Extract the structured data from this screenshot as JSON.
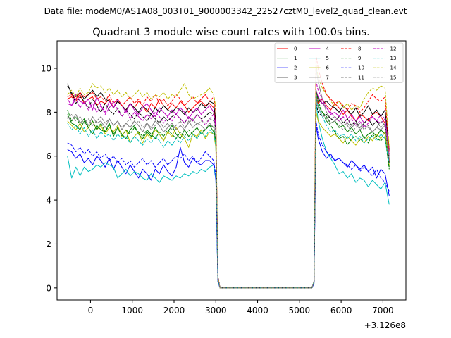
{
  "suptitle": "Data file: modeM0/AS1A08_003T01_9000003342_22527cztM0_level2_quad_clean.evt",
  "chart_data": {
    "type": "line",
    "title": "Quadrant 3 module wise count rates with 100.0s bins.",
    "xlabel": "",
    "ylabel": "",
    "x_offset_label": "+3.126e8",
    "xlim": [
      -800,
      7550
    ],
    "ylim": [
      -0.55,
      11.25
    ],
    "xticks": [
      0,
      1000,
      2000,
      3000,
      4000,
      5000,
      6000,
      7000
    ],
    "yticks": [
      0,
      2,
      4,
      6,
      8,
      10
    ],
    "x": [
      -550,
      -450,
      -350,
      -250,
      -150,
      -50,
      50,
      150,
      250,
      350,
      450,
      550,
      650,
      750,
      850,
      950,
      1050,
      1150,
      1250,
      1350,
      1450,
      1550,
      1650,
      1750,
      1850,
      1950,
      2050,
      2150,
      2250,
      2350,
      2450,
      2550,
      2650,
      2750,
      2850,
      2950,
      3000,
      3050,
      3100,
      5300,
      5350,
      5400,
      5450,
      5550,
      5650,
      5750,
      5850,
      5950,
      6050,
      6150,
      6250,
      6350,
      6450,
      6550,
      6650,
      6750,
      6850,
      6950,
      7050,
      7150
    ],
    "legend": {
      "location": "top-right",
      "columns": 4
    },
    "series": [
      {
        "name": "0",
        "color": "#ff0000",
        "dash": false,
        "values": [
          8.6,
          8.7,
          8.5,
          8.8,
          8.4,
          8.6,
          8.7,
          8.3,
          8.5,
          8.4,
          8.6,
          8.2,
          8.5,
          8.3,
          8.1,
          8.4,
          8.2,
          8.5,
          8.3,
          8.0,
          8.4,
          8.2,
          8.6,
          8.3,
          8.1,
          8.4,
          8.2,
          8.5,
          8.3,
          8.0,
          8.2,
          8.4,
          8.5,
          8.3,
          8.4,
          8.2,
          7.5,
          0.5,
          0.0,
          0.0,
          0.3,
          8.8,
          8.4,
          8.6,
          8.3,
          8.1,
          8.4,
          8.2,
          7.9,
          8.1,
          7.8,
          7.6,
          7.9,
          7.8,
          7.6,
          7.9,
          8.0,
          7.8,
          7.5,
          5.8
        ]
      },
      {
        "name": "1",
        "color": "#008000",
        "dash": false,
        "values": [
          7.9,
          7.5,
          7.4,
          7.2,
          7.6,
          7.3,
          7.0,
          7.4,
          7.2,
          7.1,
          7.5,
          6.9,
          7.3,
          7.0,
          6.8,
          7.2,
          7.4,
          7.0,
          6.8,
          7.1,
          6.9,
          7.3,
          7.0,
          6.7,
          7.1,
          7.4,
          7.0,
          6.8,
          7.2,
          6.9,
          7.1,
          7.3,
          7.0,
          7.2,
          7.4,
          7.1,
          6.6,
          0.4,
          0.0,
          0.0,
          0.3,
          8.6,
          8.3,
          8.0,
          7.8,
          7.5,
          7.6,
          7.3,
          7.4,
          7.1,
          7.3,
          7.0,
          7.2,
          6.8,
          7.0,
          7.1,
          6.9,
          7.2,
          7.0,
          5.5
        ]
      },
      {
        "name": "2",
        "color": "#0000ff",
        "dash": false,
        "values": [
          6.3,
          6.2,
          5.9,
          6.1,
          5.7,
          5.9,
          5.6,
          6.0,
          5.8,
          5.5,
          5.9,
          5.4,
          5.8,
          5.5,
          5.2,
          5.6,
          5.3,
          5.0,
          5.4,
          5.2,
          4.9,
          5.4,
          5.2,
          5.6,
          5.3,
          5.1,
          5.5,
          6.4,
          5.7,
          5.5,
          5.9,
          5.7,
          5.6,
          5.8,
          5.8,
          5.6,
          4.9,
          0.3,
          0.0,
          0.0,
          0.2,
          7.4,
          6.8,
          6.2,
          5.9,
          6.1,
          5.8,
          5.9,
          5.7,
          5.5,
          5.8,
          5.6,
          5.4,
          5.6,
          5.3,
          5.5,
          5.0,
          5.4,
          5.2,
          4.2
        ]
      },
      {
        "name": "3",
        "color": "#000000",
        "dash": false,
        "values": [
          9.3,
          8.8,
          8.7,
          8.9,
          8.6,
          8.8,
          9.0,
          8.7,
          8.9,
          8.6,
          8.5,
          8.2,
          8.5,
          8.3,
          8.1,
          8.4,
          8.2,
          8.0,
          8.3,
          8.1,
          7.9,
          8.2,
          8.0,
          8.3,
          8.1,
          8.0,
          8.2,
          8.1,
          7.9,
          8.2,
          8.0,
          8.1,
          8.4,
          8.2,
          8.5,
          8.4,
          7.6,
          0.5,
          0.0,
          0.0,
          0.3,
          9.0,
          8.6,
          8.4,
          8.5,
          8.3,
          8.2,
          8.0,
          8.3,
          8.1,
          7.9,
          8.2,
          7.8,
          8.0,
          8.3,
          7.9,
          8.1,
          7.8,
          8.1,
          6.3
        ]
      },
      {
        "name": "4",
        "color": "#bf00bf",
        "dash": false,
        "values": [
          8.6,
          8.3,
          8.8,
          8.5,
          8.4,
          8.6,
          8.1,
          8.7,
          8.3,
          8.0,
          8.5,
          8.2,
          8.6,
          8.3,
          8.0,
          8.4,
          8.1,
          7.9,
          8.2,
          8.4,
          8.1,
          7.8,
          8.2,
          8.0,
          7.8,
          8.1,
          7.9,
          8.2,
          8.0,
          7.7,
          8.0,
          8.2,
          7.9,
          8.1,
          8.3,
          8.0,
          7.4,
          0.5,
          0.0,
          0.0,
          0.3,
          9.0,
          8.7,
          8.4,
          8.2,
          7.9,
          8.0,
          7.8,
          8.1,
          7.7,
          7.9,
          7.6,
          7.8,
          7.5,
          7.7,
          7.8,
          7.6,
          7.5,
          7.7,
          6.0
        ]
      },
      {
        "name": "5",
        "color": "#00bfbf",
        "dash": false,
        "values": [
          6.0,
          5.0,
          5.5,
          5.1,
          5.5,
          5.3,
          5.4,
          5.6,
          5.5,
          5.7,
          5.6,
          5.5,
          5.0,
          5.2,
          5.4,
          5.1,
          5.3,
          5.2,
          5.0,
          4.9,
          5.2,
          5.0,
          4.8,
          5.1,
          5.0,
          4.9,
          5.1,
          5.0,
          5.2,
          5.1,
          5.3,
          5.2,
          5.4,
          5.3,
          5.5,
          5.6,
          5.0,
          0.3,
          0.0,
          0.0,
          0.2,
          8.5,
          7.6,
          6.8,
          6.2,
          5.9,
          5.6,
          5.2,
          5.3,
          5.0,
          5.2,
          4.8,
          5.0,
          4.9,
          4.6,
          4.9,
          4.7,
          4.5,
          4.8,
          3.8
        ]
      },
      {
        "name": "6",
        "color": "#bfbf00",
        "dash": false,
        "values": [
          7.6,
          7.4,
          7.2,
          7.5,
          7.1,
          7.3,
          7.6,
          7.2,
          7.4,
          7.0,
          7.3,
          7.1,
          7.4,
          6.9,
          7.2,
          6.6,
          6.9,
          7.1,
          6.6,
          7.0,
          6.8,
          7.2,
          7.0,
          6.7,
          7.1,
          6.9,
          7.3,
          7.0,
          6.8,
          6.4,
          7.0,
          6.9,
          7.2,
          6.8,
          7.1,
          7.0,
          6.4,
          0.4,
          0.0,
          0.0,
          0.3,
          8.0,
          7.6,
          7.3,
          7.1,
          6.9,
          7.0,
          6.8,
          6.6,
          6.9,
          6.7,
          6.5,
          6.8,
          6.6,
          6.9,
          6.7,
          7.0,
          6.8,
          7.1,
          5.6
        ]
      },
      {
        "name": "7",
        "color": "#7f7f7f",
        "dash": false,
        "values": [
          7.8,
          7.6,
          7.9,
          7.5,
          7.7,
          7.4,
          7.8,
          7.5,
          7.6,
          7.3,
          7.7,
          7.4,
          7.6,
          7.2,
          7.5,
          7.3,
          7.6,
          7.4,
          7.1,
          7.5,
          7.3,
          7.6,
          7.4,
          7.1,
          7.3,
          7.5,
          7.2,
          7.4,
          7.2,
          7.6,
          7.3,
          7.5,
          7.4,
          7.2,
          7.5,
          7.3,
          6.7,
          0.4,
          0.0,
          0.0,
          0.3,
          10.0,
          9.4,
          8.6,
          8.0,
          7.7,
          7.8,
          7.6,
          7.4,
          7.5,
          7.3,
          7.5,
          7.2,
          7.4,
          7.3,
          7.1,
          7.3,
          7.2,
          7.4,
          6.0
        ]
      },
      {
        "name": "8",
        "color": "#ff0000",
        "dash": true,
        "values": [
          8.7,
          8.8,
          8.6,
          8.9,
          8.7,
          8.8,
          8.9,
          8.6,
          8.7,
          8.5,
          8.8,
          8.4,
          8.6,
          8.3,
          8.5,
          8.7,
          8.4,
          8.6,
          8.3,
          8.7,
          8.5,
          8.8,
          8.4,
          8.6,
          8.3,
          8.5,
          8.8,
          8.6,
          8.3,
          8.5,
          8.7,
          8.4,
          8.6,
          8.8,
          8.5,
          8.7,
          8.0,
          0.5,
          0.0,
          0.0,
          0.3,
          10.6,
          10.0,
          9.3,
          8.8,
          8.6,
          8.4,
          8.5,
          8.3,
          8.1,
          8.4,
          8.3,
          8.0,
          8.2,
          8.5,
          8.8,
          8.6,
          8.5,
          8.7,
          6.2
        ]
      },
      {
        "name": "9",
        "color": "#008000",
        "dash": true,
        "values": [
          8.1,
          7.6,
          7.8,
          7.4,
          7.7,
          7.3,
          7.6,
          7.2,
          7.5,
          7.1,
          7.4,
          7.0,
          7.3,
          6.9,
          7.2,
          7.0,
          7.3,
          7.1,
          6.9,
          7.2,
          7.0,
          6.8,
          7.1,
          6.9,
          7.2,
          7.0,
          6.8,
          7.1,
          6.9,
          7.2,
          7.0,
          6.8,
          7.1,
          7.2,
          7.4,
          7.3,
          6.7,
          0.4,
          0.0,
          0.0,
          0.3,
          9.0,
          8.5,
          8.0,
          7.6,
          7.4,
          7.1,
          6.8,
          6.9,
          6.5,
          6.8,
          6.9,
          6.7,
          6.9,
          6.6,
          7.0,
          6.8,
          6.7,
          6.9,
          5.4
        ]
      },
      {
        "name": "10",
        "color": "#0000ff",
        "dash": true,
        "values": [
          6.6,
          6.5,
          6.2,
          6.4,
          6.1,
          6.3,
          6.0,
          6.2,
          5.9,
          6.1,
          5.8,
          6.0,
          5.7,
          5.9,
          5.6,
          5.8,
          5.5,
          5.7,
          5.9,
          5.6,
          5.8,
          5.5,
          5.7,
          5.9,
          5.6,
          5.8,
          6.0,
          5.9,
          6.1,
          5.8,
          6.0,
          5.7,
          5.9,
          6.2,
          6.0,
          5.8,
          5.1,
          0.3,
          0.0,
          0.0,
          0.2,
          7.6,
          7.0,
          6.5,
          6.2,
          6.0,
          5.8,
          5.9,
          5.7,
          5.6,
          5.4,
          5.6,
          5.3,
          5.5,
          5.3,
          5.1,
          5.4,
          5.0,
          4.8,
          4.4
        ]
      },
      {
        "name": "11",
        "color": "#000000",
        "dash": true,
        "values": [
          9.2,
          8.9,
          8.4,
          8.7,
          8.5,
          8.2,
          8.6,
          8.3,
          8.0,
          8.4,
          8.1,
          7.9,
          8.2,
          7.8,
          8.1,
          7.9,
          7.7,
          8.0,
          7.8,
          7.6,
          7.9,
          7.7,
          7.5,
          7.8,
          7.6,
          7.8,
          7.9,
          7.7,
          7.5,
          7.8,
          7.6,
          7.9,
          7.7,
          7.8,
          8.0,
          7.9,
          7.2,
          0.5,
          0.0,
          0.0,
          0.3,
          8.4,
          8.0,
          7.8,
          7.9,
          7.7,
          7.6,
          7.8,
          7.5,
          7.7,
          7.4,
          7.6,
          7.3,
          7.5,
          7.7,
          7.4,
          7.6,
          7.3,
          7.5,
          5.7
        ]
      },
      {
        "name": "12",
        "color": "#bf00bf",
        "dash": true,
        "values": [
          8.4,
          8.3,
          8.6,
          8.2,
          8.5,
          8.1,
          8.4,
          8.0,
          8.3,
          7.9,
          8.2,
          8.5,
          8.1,
          7.8,
          8.1,
          7.7,
          8.0,
          7.8,
          7.6,
          7.9,
          7.7,
          8.0,
          7.8,
          7.5,
          7.8,
          7.6,
          7.9,
          7.7,
          7.5,
          7.8,
          7.6,
          7.9,
          7.7,
          7.4,
          7.7,
          7.9,
          7.3,
          0.5,
          0.0,
          0.0,
          0.3,
          9.4,
          9.0,
          8.6,
          8.2,
          8.0,
          7.8,
          7.6,
          7.8,
          7.5,
          7.7,
          7.4,
          7.6,
          7.3,
          7.5,
          7.8,
          7.6,
          7.9,
          7.7,
          6.1
        ]
      },
      {
        "name": "13",
        "color": "#00bfbf",
        "dash": true,
        "values": [
          7.5,
          7.2,
          7.4,
          7.0,
          7.3,
          6.9,
          7.2,
          6.8,
          7.1,
          6.9,
          7.0,
          6.7,
          7.0,
          6.8,
          6.9,
          6.6,
          6.9,
          6.7,
          6.5,
          6.8,
          6.6,
          6.9,
          6.7,
          6.4,
          6.7,
          6.5,
          6.8,
          6.6,
          6.9,
          6.7,
          7.0,
          6.8,
          7.1,
          6.9,
          7.2,
          7.0,
          6.5,
          0.4,
          0.0,
          0.0,
          0.3,
          8.8,
          8.2,
          7.8,
          7.4,
          7.1,
          7.2,
          6.9,
          7.0,
          6.8,
          7.0,
          6.7,
          6.9,
          6.6,
          6.8,
          6.9,
          6.7,
          7.0,
          6.8,
          5.7
        ]
      },
      {
        "name": "14",
        "color": "#bfbf00",
        "dash": true,
        "values": [
          8.8,
          9.0,
          8.7,
          9.1,
          8.8,
          8.9,
          9.3,
          9.1,
          9.2,
          8.9,
          9.1,
          8.8,
          9.0,
          8.7,
          8.9,
          8.6,
          8.8,
          9.0,
          8.7,
          8.9,
          8.6,
          8.8,
          8.7,
          8.9,
          8.6,
          8.8,
          8.7,
          9.0,
          9.3,
          8.8,
          8.6,
          8.7,
          8.8,
          8.9,
          9.1,
          8.8,
          8.2,
          0.5,
          0.0,
          0.0,
          0.3,
          10.2,
          9.6,
          9.1,
          8.8,
          8.5,
          8.3,
          8.5,
          8.2,
          8.4,
          8.1,
          8.3,
          8.2,
          8.6,
          8.9,
          9.1,
          9.0,
          9.2,
          9.1,
          6.4
        ]
      },
      {
        "name": "15",
        "color": "#7f7f7f",
        "dash": true,
        "values": [
          7.7,
          7.9,
          7.6,
          7.8,
          7.5,
          7.7,
          7.4,
          7.6,
          7.8,
          7.5,
          7.7,
          7.4,
          7.6,
          7.3,
          7.5,
          7.7,
          7.4,
          7.6,
          7.3,
          7.5,
          7.2,
          7.4,
          7.6,
          7.3,
          7.5,
          7.2,
          7.4,
          7.6,
          7.3,
          7.5,
          7.7,
          7.4,
          7.6,
          7.5,
          7.7,
          7.6,
          7.0,
          0.4,
          0.0,
          0.0,
          0.3,
          8.6,
          8.2,
          7.9,
          7.7,
          7.5,
          7.6,
          7.4,
          7.2,
          7.4,
          7.1,
          7.3,
          7.5,
          7.2,
          7.4,
          7.1,
          7.3,
          7.6,
          7.4,
          5.9
        ]
      }
    ]
  }
}
